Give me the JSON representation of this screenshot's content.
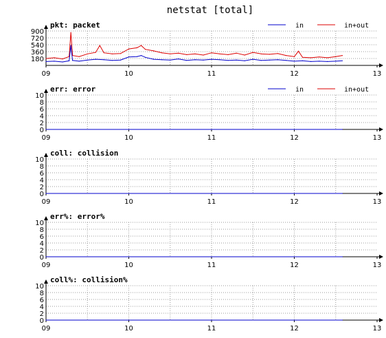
{
  "title": "netstat [total]",
  "colors": {
    "in": "#0000cc",
    "in_out": "#dd0000",
    "grid": "#9a9a9a",
    "axis": "#000000"
  },
  "chart_data": [
    {
      "type": "line",
      "title": "pkt: packet",
      "yticks": [
        180,
        360,
        540,
        720,
        900
      ],
      "ylim": [
        0,
        900
      ],
      "xticks": [
        "09",
        "10",
        "11",
        "12",
        "13"
      ],
      "xlim": [
        9,
        13
      ],
      "data_end": 12.58,
      "legend": [
        "in",
        "in+out"
      ],
      "series": [
        {
          "name": "in",
          "color": "#0000cc",
          "x": [
            9.0,
            9.1,
            9.2,
            9.28,
            9.3,
            9.32,
            9.4,
            9.5,
            9.6,
            9.7,
            9.8,
            9.9,
            10.0,
            10.1,
            10.15,
            10.2,
            10.3,
            10.4,
            10.5,
            10.6,
            10.7,
            10.8,
            10.9,
            11.0,
            11.1,
            11.2,
            11.3,
            11.4,
            11.5,
            11.6,
            11.7,
            11.8,
            11.9,
            12.0,
            12.1,
            12.2,
            12.3,
            12.4,
            12.5,
            12.58
          ],
          "values": [
            100,
            110,
            90,
            120,
            520,
            130,
            110,
            140,
            160,
            150,
            130,
            140,
            220,
            230,
            260,
            210,
            160,
            150,
            140,
            170,
            130,
            150,
            140,
            160,
            150,
            130,
            140,
            120,
            160,
            130,
            140,
            150,
            130,
            110,
            120,
            100,
            110,
            100,
            110,
            120
          ]
        },
        {
          "name": "in+out",
          "color": "#dd0000",
          "x": [
            9.0,
            9.1,
            9.2,
            9.28,
            9.3,
            9.32,
            9.4,
            9.5,
            9.6,
            9.65,
            9.7,
            9.8,
            9.9,
            10.0,
            10.1,
            10.15,
            10.2,
            10.3,
            10.4,
            10.5,
            10.6,
            10.7,
            10.8,
            10.9,
            11.0,
            11.1,
            11.2,
            11.3,
            11.4,
            11.5,
            11.6,
            11.7,
            11.8,
            11.9,
            12.0,
            12.05,
            12.1,
            12.2,
            12.3,
            12.4,
            12.5,
            12.58
          ],
          "values": [
            180,
            200,
            170,
            230,
            860,
            260,
            230,
            300,
            340,
            520,
            330,
            300,
            310,
            430,
            460,
            520,
            420,
            380,
            330,
            300,
            320,
            280,
            300,
            270,
            330,
            300,
            280,
            320,
            270,
            340,
            300,
            290,
            310,
            260,
            230,
            370,
            210,
            200,
            220,
            200,
            230,
            260
          ]
        }
      ]
    },
    {
      "type": "line",
      "title": "err: error",
      "yticks": [
        0,
        2,
        4,
        6,
        8,
        10
      ],
      "ylim": [
        0,
        10
      ],
      "xticks": [
        "09",
        "10",
        "11",
        "12",
        "13"
      ],
      "xlim": [
        9,
        13
      ],
      "data_end": 12.58,
      "legend": [
        "in",
        "in+out"
      ],
      "series": [
        {
          "name": "in",
          "color": "#0000cc",
          "x": [
            9.0,
            12.58
          ],
          "values": [
            0,
            0
          ]
        },
        {
          "name": "in+out",
          "color": "#dd0000",
          "x": [
            9.0,
            12.58
          ],
          "values": [
            0,
            0
          ]
        }
      ]
    },
    {
      "type": "line",
      "title": "coll: collision",
      "yticks": [
        0,
        2,
        4,
        6,
        8,
        10
      ],
      "ylim": [
        0,
        10
      ],
      "xticks": [
        "09",
        "10",
        "11",
        "12",
        "13"
      ],
      "xlim": [
        9,
        13
      ],
      "data_end": 12.58,
      "legend": [],
      "series": [
        {
          "color": "#0000cc",
          "x": [
            9.0,
            12.58
          ],
          "values": [
            0,
            0
          ]
        }
      ]
    },
    {
      "type": "line",
      "title": "err%: error%",
      "yticks": [
        0,
        2,
        4,
        6,
        8,
        10
      ],
      "ylim": [
        0,
        10
      ],
      "xticks": [
        "09",
        "10",
        "11",
        "12",
        "13"
      ],
      "xlim": [
        9,
        13
      ],
      "data_end": 12.58,
      "legend": [],
      "series": [
        {
          "color": "#0000cc",
          "x": [
            9.0,
            12.58
          ],
          "values": [
            0,
            0
          ]
        }
      ]
    },
    {
      "type": "line",
      "title": "coll%: collision%",
      "yticks": [
        0,
        2,
        4,
        6,
        8,
        10
      ],
      "ylim": [
        0,
        10
      ],
      "xticks": [
        "09",
        "10",
        "11",
        "12",
        "13"
      ],
      "xlim": [
        9,
        13
      ],
      "data_end": 12.58,
      "legend": [],
      "series": [
        {
          "color": "#0000cc",
          "x": [
            9.0,
            12.58
          ],
          "values": [
            0,
            0
          ]
        }
      ]
    }
  ]
}
